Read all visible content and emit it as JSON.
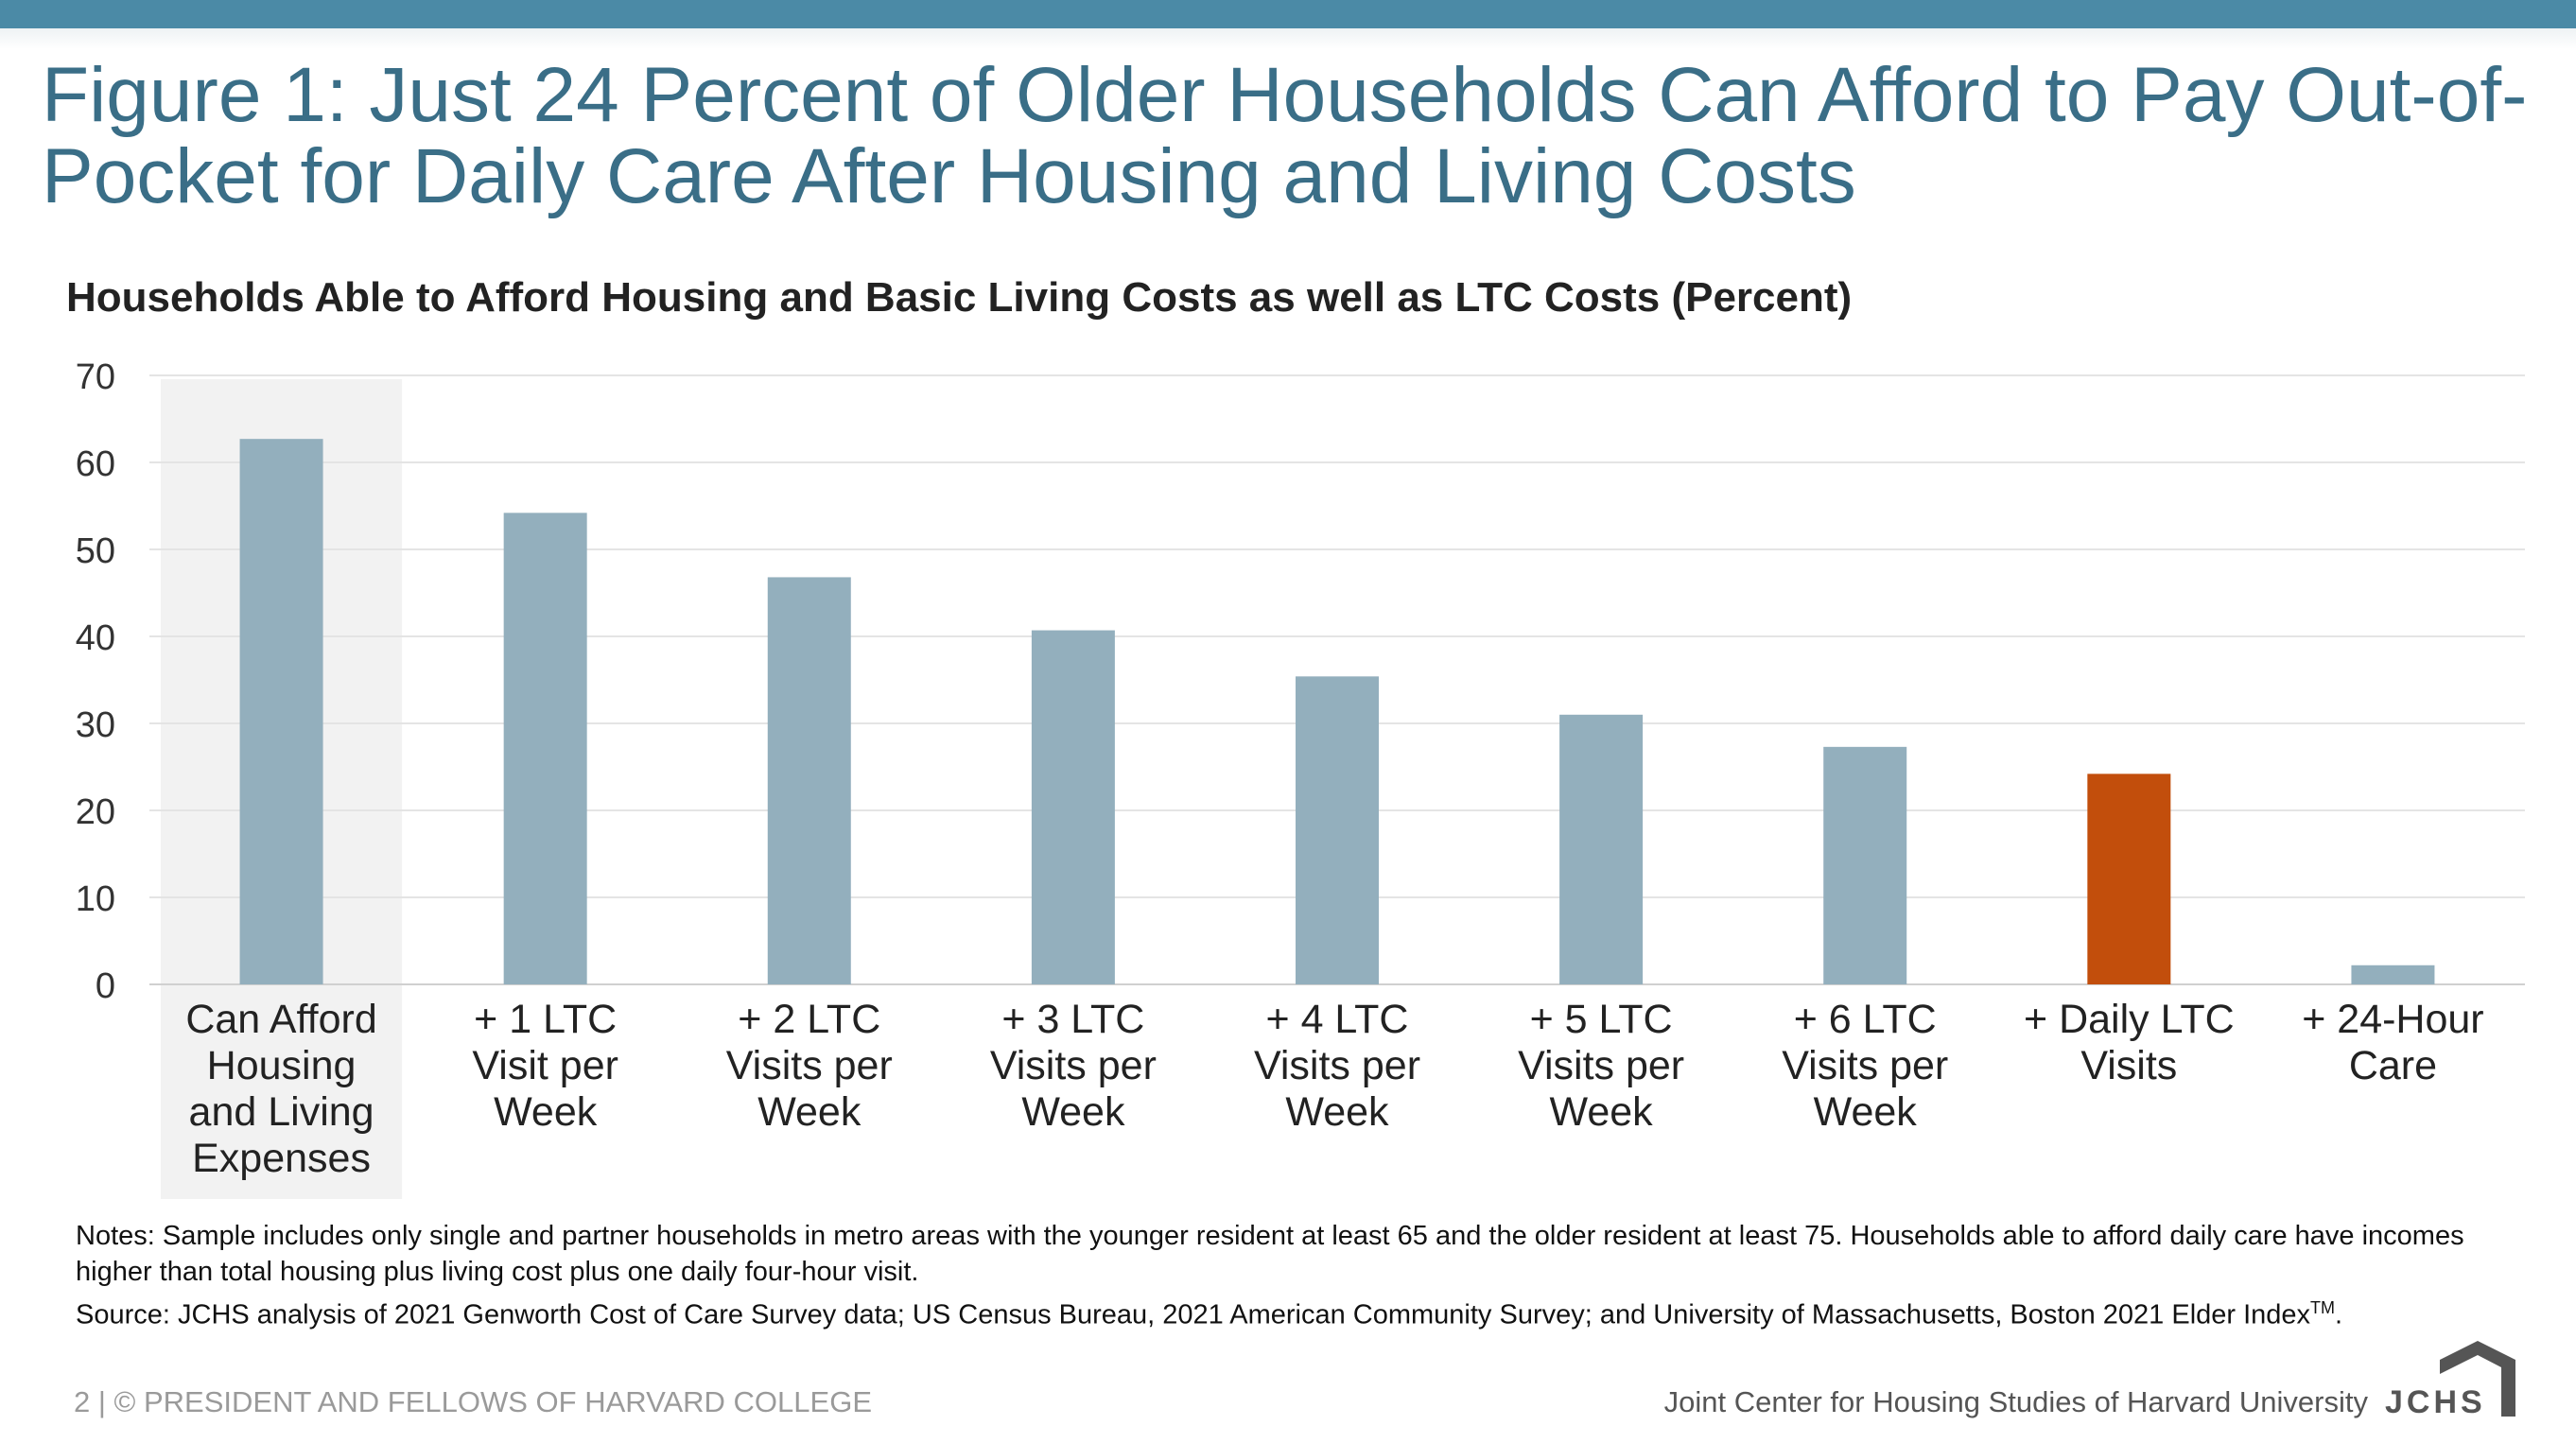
{
  "header": {
    "title": "Figure 1: Just 24 Percent of Older Households Can Afford to Pay Out-of-Pocket for Daily Care After Housing and Living Costs"
  },
  "chart_data": {
    "type": "bar",
    "title": "Households Able to Afford Housing and Basic Living Costs as well as LTC Costs (Percent)",
    "categories": [
      [
        "Can Afford",
        "Housing",
        "and Living",
        "Expenses"
      ],
      [
        "+ 1 LTC",
        "Visit per",
        "Week"
      ],
      [
        "+ 2 LTC",
        "Visits per",
        "Week"
      ],
      [
        "+ 3 LTC",
        "Visits per",
        "Week"
      ],
      [
        "+ 4 LTC",
        "Visits per",
        "Week"
      ],
      [
        "+ 5 LTC",
        "Visits per",
        "Week"
      ],
      [
        "+ 6 LTC",
        "Visits per",
        "Week"
      ],
      [
        "+ Daily LTC",
        "Visits"
      ],
      [
        "+ 24-Hour",
        "Care"
      ]
    ],
    "values": [
      62.7,
      54.2,
      46.8,
      40.7,
      35.4,
      31.0,
      27.3,
      24.2,
      2.2
    ],
    "ylim": [
      0,
      70
    ],
    "yticks": [
      0,
      10,
      20,
      30,
      40,
      50,
      60,
      70
    ],
    "grid": true,
    "highlight_category_index": 0,
    "accent_index": 7,
    "colors": {
      "bar": "#93afbd",
      "accent": "#c24e0c",
      "highlight_bg": "#f2f2f2",
      "grid": "#e4e4e4"
    }
  },
  "notes": {
    "line1": "Notes: Sample includes only single and partner households in metro areas with the younger resident at least 65 and the older resident at least 75. Households able to afford daily care have incomes higher than total housing plus living cost plus one daily four-hour visit.",
    "line2_main": "Source: JCHS analysis of 2021 Genworth Cost of Care Survey data; US Census Bureau, 2021 American Community Survey; and University of Massachusetts, Boston 2021 Elder Index",
    "line2_sup": "TM",
    "line2_end": "."
  },
  "footer": {
    "left": "2 | © PRESIDENT AND FELLOWS OF HARVARD COLLEGE",
    "right": "Joint Center for Housing Studies of Harvard University",
    "logo_text": "JCHS"
  }
}
